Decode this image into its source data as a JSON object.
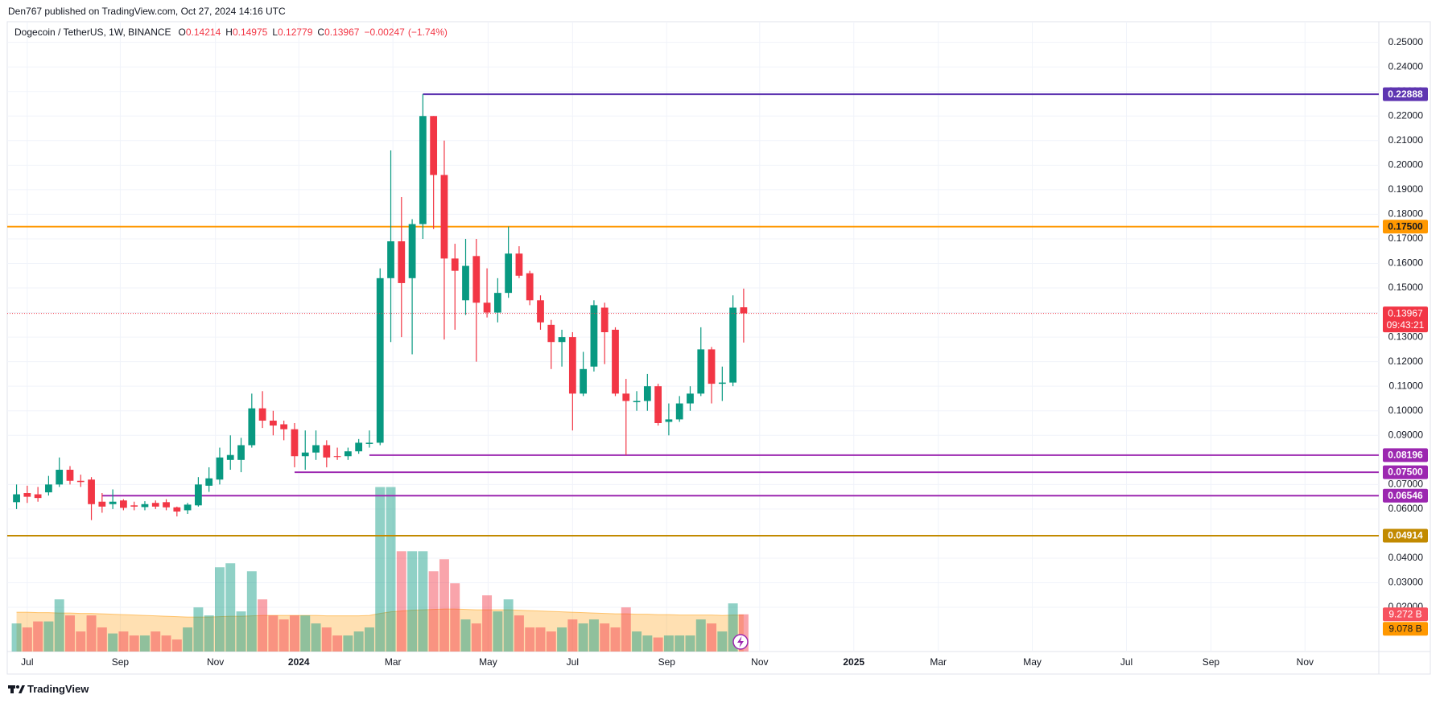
{
  "header": {
    "published": "Den767 published on TradingView.com, Oct 27, 2024 14:16 UTC",
    "brand": "TradingView"
  },
  "chart_data": {
    "type": "candlestick",
    "symbol": "Dogecoin / TetherUS, 1W, BINANCE",
    "ohlc_letters": [
      "O",
      "H",
      "L",
      "C"
    ],
    "change": {
      "value": -0.00247,
      "label": "−0.00247"
    },
    "change_pct": {
      "value": -1.74,
      "label": "(−1.74%)"
    },
    "countdown": "09:43:21",
    "colors": {
      "up": "#089981",
      "down": "#f23645",
      "volume_up": "rgba(8,153,129,0.45)",
      "volume_down": "rgba(242,54,69,0.45)",
      "volume_ma": "#ff9800",
      "price_line": "#f23645"
    },
    "open": [
      0.0628,
      0.0665,
      0.066,
      0.0668,
      0.07,
      0.076,
      0.0715,
      0.072,
      0.063,
      0.062,
      0.0635,
      0.0615,
      0.0608,
      0.0625,
      0.0628,
      0.0607,
      0.0595,
      0.0615,
      0.0695,
      0.072,
      0.08,
      0.08,
      0.086,
      0.101,
      0.096,
      0.0945,
      0.0925,
      0.0815,
      0.083,
      0.086,
      0.0815,
      0.0815,
      0.0835,
      0.0865,
      0.087,
      0.154,
      0.169,
      0.154,
      0.176,
      0.22,
      0.196,
      0.162,
      0.145,
      0.163,
      0.144,
      0.14,
      0.148,
      0.164,
      0.156,
      0.145,
      0.135,
      0.128,
      0.13,
      0.107,
      0.118,
      0.142,
      0.133,
      0.107,
      0.1035,
      0.104,
      0.11,
      0.0955,
      0.0965,
      0.103,
      0.107,
      0.125,
      0.111,
      0.1115,
      0.14214
    ],
    "high": [
      0.07,
      0.0695,
      0.069,
      0.0735,
      0.081,
      0.0775,
      0.074,
      0.073,
      0.0665,
      0.068,
      0.064,
      0.063,
      0.0632,
      0.0635,
      0.064,
      0.061,
      0.0625,
      0.073,
      0.077,
      0.085,
      0.09,
      0.089,
      0.107,
      0.108,
      0.1,
      0.096,
      0.095,
      0.092,
      0.092,
      0.088,
      0.085,
      0.085,
      0.0885,
      0.092,
      0.158,
      0.206,
      0.187,
      0.178,
      0.22888,
      0.22,
      0.21,
      0.168,
      0.17,
      0.17,
      0.158,
      0.154,
      0.175,
      0.167,
      0.157,
      0.147,
      0.137,
      0.133,
      0.132,
      0.124,
      0.145,
      0.144,
      0.134,
      0.113,
      0.108,
      0.115,
      0.111,
      0.103,
      0.106,
      0.11,
      0.134,
      0.126,
      0.118,
      0.147,
      0.14975
    ],
    "low": [
      0.06,
      0.0625,
      0.063,
      0.0655,
      0.069,
      0.07,
      0.069,
      0.0555,
      0.0585,
      0.06,
      0.0595,
      0.0595,
      0.0595,
      0.06,
      0.0595,
      0.057,
      0.058,
      0.061,
      0.067,
      0.07,
      0.076,
      0.075,
      0.085,
      0.093,
      0.09,
      0.088,
      0.077,
      0.076,
      0.08,
      0.077,
      0.08,
      0.08,
      0.0825,
      0.085,
      0.086,
      0.128,
      0.13,
      0.123,
      0.17,
      0.174,
      0.129,
      0.133,
      0.139,
      0.12,
      0.138,
      0.136,
      0.146,
      0.154,
      0.143,
      0.133,
      0.117,
      0.118,
      0.092,
      0.106,
      0.116,
      0.119,
      0.106,
      0.08196,
      0.1,
      0.1,
      0.094,
      0.09,
      0.0955,
      0.1,
      0.106,
      0.103,
      0.104,
      0.11,
      0.12779
    ],
    "close": [
      0.066,
      0.065,
      0.0645,
      0.07,
      0.076,
      0.0715,
      0.071,
      0.062,
      0.061,
      0.063,
      0.0605,
      0.061,
      0.062,
      0.061,
      0.0607,
      0.059,
      0.0618,
      0.07,
      0.0725,
      0.081,
      0.082,
      0.086,
      0.101,
      0.096,
      0.094,
      0.0925,
      0.0815,
      0.083,
      0.086,
      0.081,
      0.0812,
      0.0835,
      0.087,
      0.087,
      0.154,
      0.169,
      0.152,
      0.176,
      0.22,
      0.196,
      0.162,
      0.157,
      0.159,
      0.144,
      0.14,
      0.148,
      0.164,
      0.155,
      0.145,
      0.136,
      0.128,
      0.13,
      0.107,
      0.117,
      0.143,
      0.132,
      0.107,
      0.104,
      0.104,
      0.11,
      0.095,
      0.0965,
      0.103,
      0.107,
      0.125,
      0.111,
      0.1115,
      0.142,
      0.13967
    ],
    "volume": {
      "values": [
        7,
        6,
        7.5,
        7.5,
        13,
        9,
        5,
        9,
        6,
        4.5,
        5,
        4,
        4,
        5,
        4,
        3,
        6,
        11,
        9,
        21,
        22,
        10,
        20,
        13,
        9,
        8,
        9,
        9,
        7,
        6,
        4,
        4,
        5,
        6,
        41,
        41,
        25,
        25,
        25,
        20,
        23,
        17,
        8,
        7,
        14,
        10,
        13,
        9,
        6,
        6,
        5,
        6,
        8,
        7,
        8,
        7,
        6,
        11,
        5,
        4,
        3.5,
        4,
        4,
        4,
        8,
        7,
        5,
        12,
        9.272
      ],
      "last_label": "9.272 B",
      "ma_values": [
        9.8,
        9.8,
        9.7,
        9.7,
        9.6,
        9.6,
        9.5,
        9.5,
        9.4,
        9.3,
        9.2,
        9.1,
        9.0,
        8.9,
        8.8,
        8.7,
        8.6,
        8.6,
        8.6,
        8.7,
        8.8,
        8.8,
        8.9,
        9.0,
        9.0,
        9.0,
        9.0,
        9.0,
        9.0,
        8.9,
        8.9,
        8.9,
        8.9,
        9.0,
        9.5,
        9.9,
        10.1,
        10.3,
        10.4,
        10.5,
        10.6,
        10.6,
        10.5,
        10.4,
        10.4,
        10.4,
        10.4,
        10.3,
        10.2,
        10.1,
        10.0,
        9.9,
        9.8,
        9.7,
        9.6,
        9.5,
        9.4,
        9.4,
        9.3,
        9.3,
        9.2,
        9.2,
        9.1,
        9.1,
        9.1,
        9.1,
        9.0,
        9.1,
        9.078
      ],
      "ma_last_label": "9.078 B",
      "ylim": [
        0,
        60
      ]
    },
    "levels": [
      {
        "value": 0.22888,
        "color": "#5e35b1",
        "start": 38
      },
      {
        "value": 0.175,
        "label": "0.17500",
        "color": "#ff9800",
        "text_color": "#131722"
      },
      {
        "value": 0.08196,
        "color": "#9c27b0",
        "start": 33
      },
      {
        "value": 0.075,
        "label": "0.07500",
        "color": "#9c27b0",
        "start": 26
      },
      {
        "value": 0.06546,
        "color": "#9c27b0",
        "start": 8
      },
      {
        "value": 0.04914,
        "color": "#c28a00"
      }
    ],
    "xlim": [
      -0.87,
      127.4
    ],
    "ylim": [
      0.002,
      0.2584
    ],
    "grid": true,
    "yticks": [
      {
        "value": 0.25,
        "label": "0.25000"
      },
      {
        "value": 0.24,
        "label": "0.24000"
      },
      {
        "value": 0.23,
        "label": "0.23000"
      },
      {
        "value": 0.22,
        "label": "0.22000"
      },
      {
        "value": 0.21,
        "label": "0.21000"
      },
      {
        "value": 0.2,
        "label": "0.20000"
      },
      {
        "value": 0.19,
        "label": "0.19000"
      },
      {
        "value": 0.18,
        "label": "0.18000"
      },
      {
        "value": 0.17,
        "label": "0.17000"
      },
      {
        "value": 0.16,
        "label": "0.16000"
      },
      {
        "value": 0.15,
        "label": "0.15000"
      },
      {
        "value": 0.14,
        "label": "0.14000"
      },
      {
        "value": 0.13,
        "label": "0.13000"
      },
      {
        "value": 0.12,
        "label": "0.12000"
      },
      {
        "value": 0.11,
        "label": "0.11000"
      },
      {
        "value": 0.1,
        "label": "0.10000"
      },
      {
        "value": 0.09,
        "label": "0.09000"
      },
      {
        "value": 0.07,
        "label": "0.07000"
      },
      {
        "value": 0.06,
        "label": "0.06000"
      },
      {
        "value": 0.04,
        "label": "0.04000"
      },
      {
        "value": 0.03,
        "label": "0.03000"
      },
      {
        "value": 0.02,
        "label": "0.02000"
      }
    ],
    "xticks": [
      {
        "value": 1.0,
        "label": "Jul"
      },
      {
        "value": 9.7,
        "label": "Sep"
      },
      {
        "value": 18.6,
        "label": "Nov"
      },
      {
        "value": 26.4,
        "label": "2024"
      },
      {
        "value": 35.2,
        "label": "Mar"
      },
      {
        "value": 44.1,
        "label": "May"
      },
      {
        "value": 52.0,
        "label": "Jul"
      },
      {
        "value": 60.8,
        "label": "Sep"
      },
      {
        "value": 69.5,
        "label": "Nov"
      },
      {
        "value": 78.3,
        "label": "2025"
      },
      {
        "value": 86.2,
        "label": "Mar"
      },
      {
        "value": 95.0,
        "label": "May"
      },
      {
        "value": 103.8,
        "label": "Jul"
      },
      {
        "value": 111.7,
        "label": "Sep"
      },
      {
        "value": 120.5,
        "label": "Nov"
      }
    ]
  }
}
